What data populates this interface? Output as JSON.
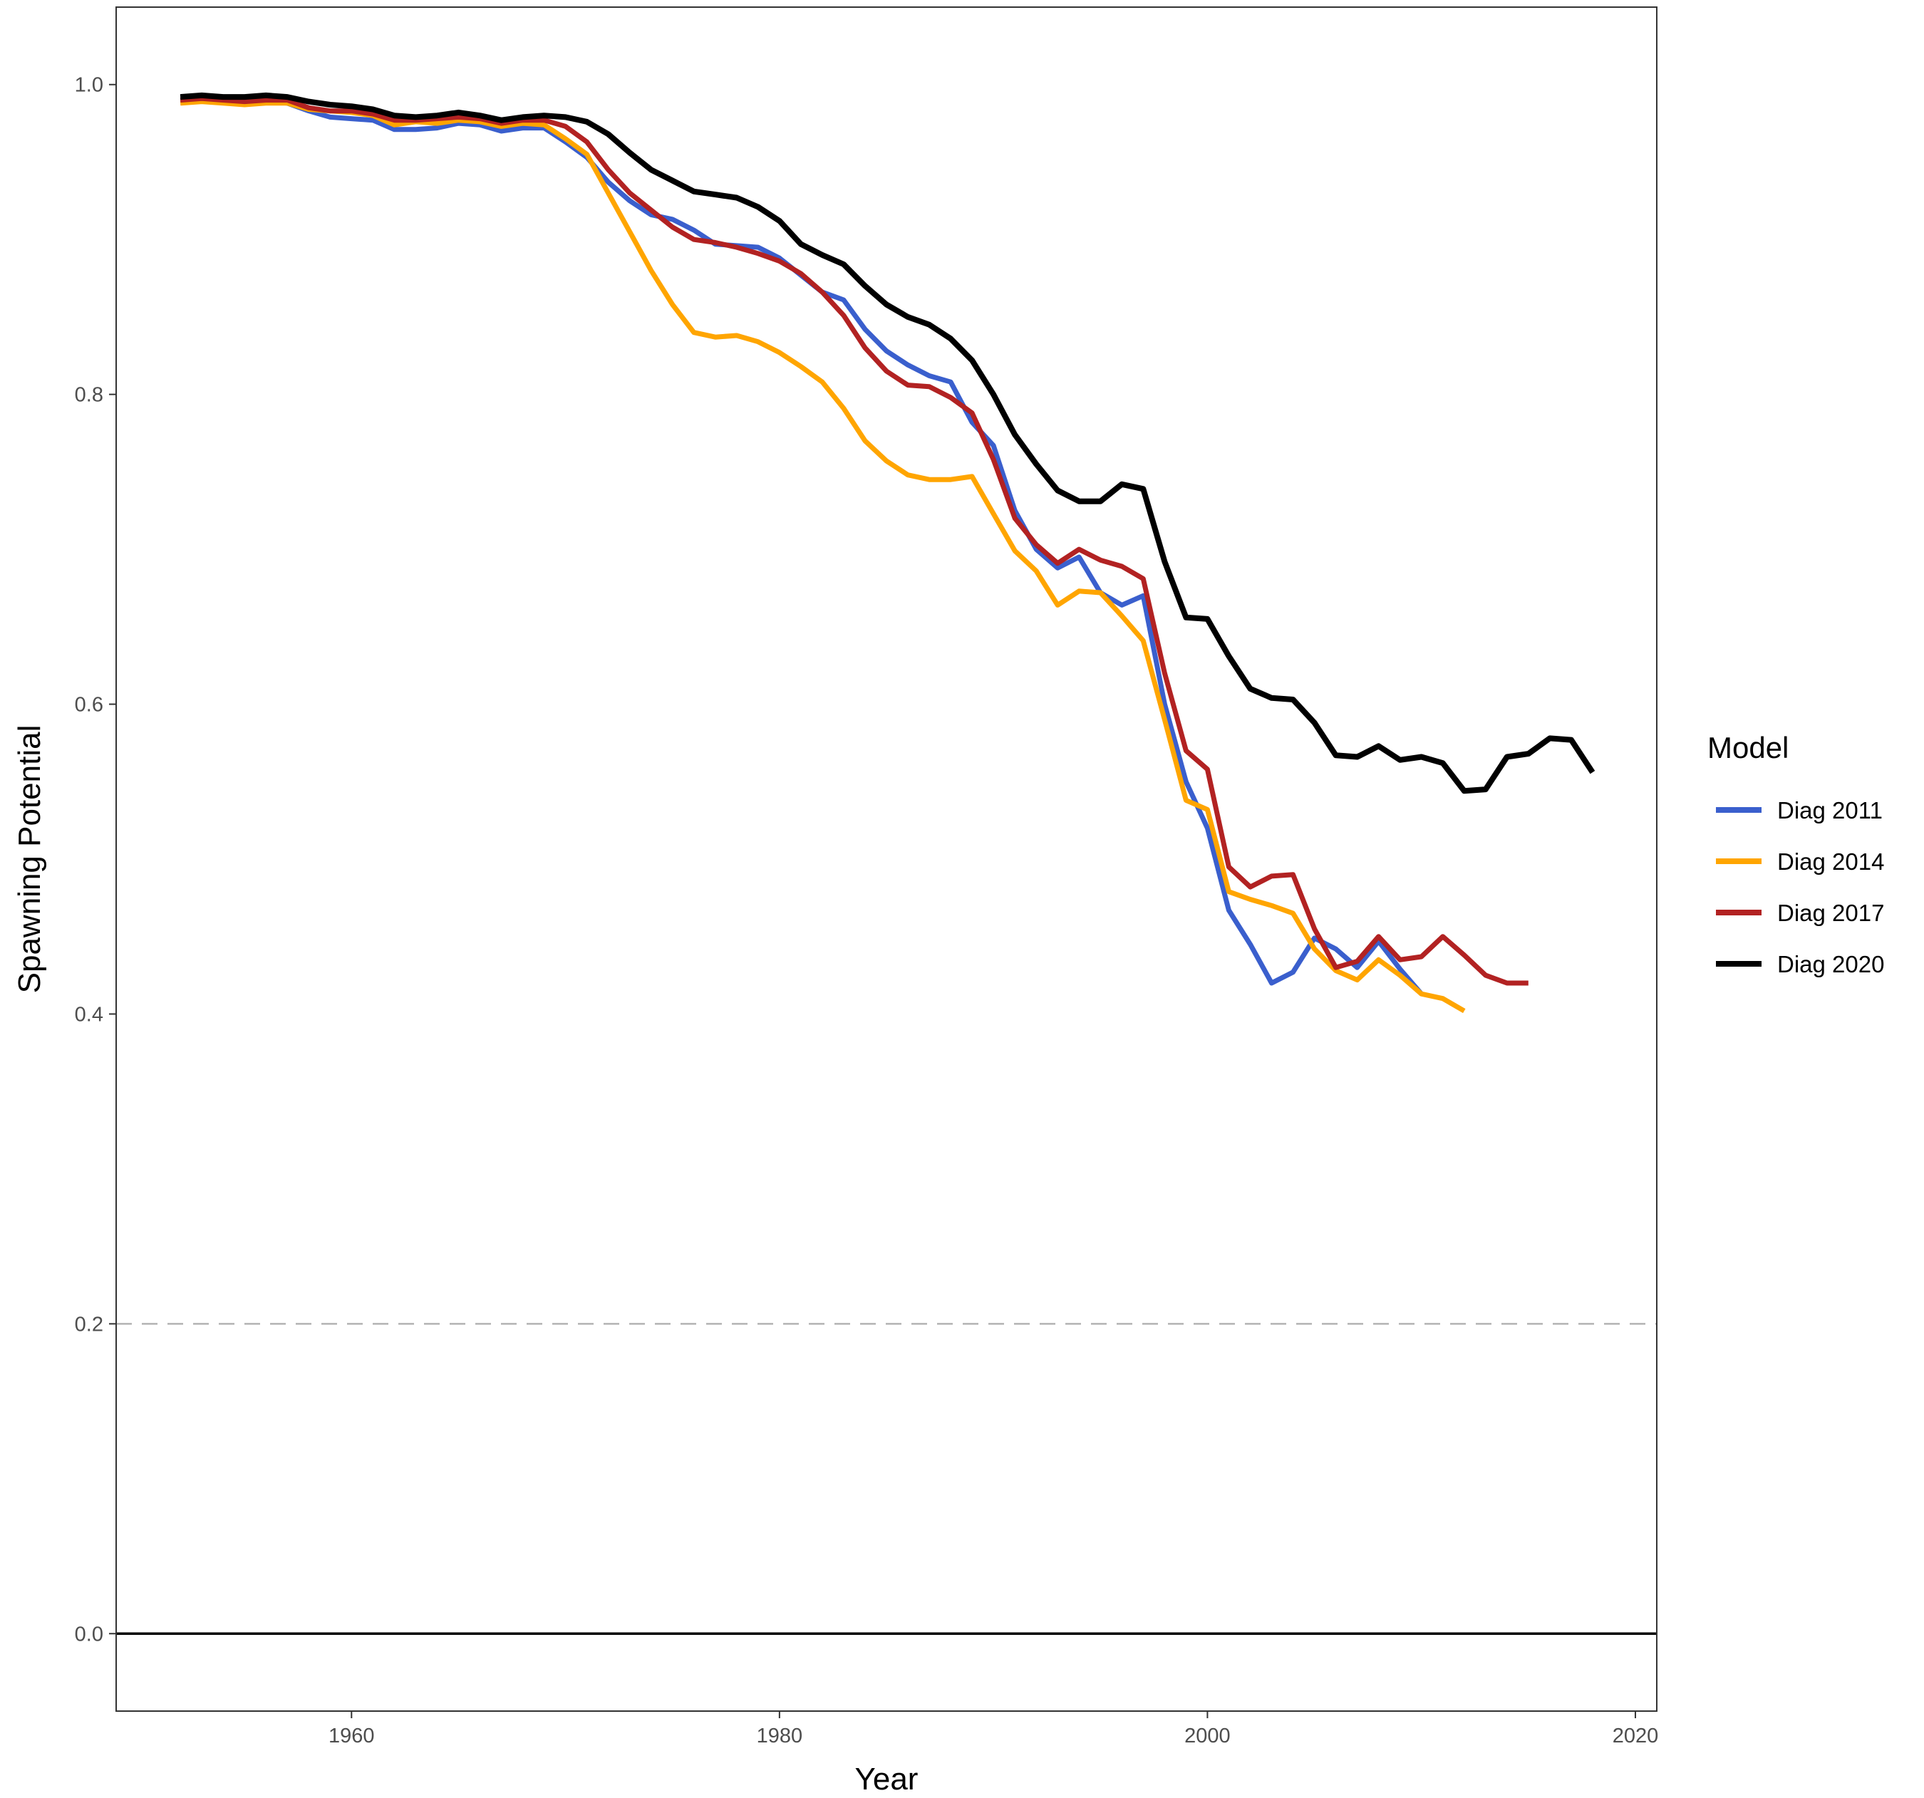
{
  "chart_data": {
    "type": "line",
    "xlabel": "Year",
    "ylabel": "Spawning Potential",
    "xlim": [
      1949,
      2021
    ],
    "ylim": [
      -0.05,
      1.05
    ],
    "x_ticks": [
      1960,
      1980,
      2000,
      2020
    ],
    "y_ticks": [
      0.0,
      0.2,
      0.4,
      0.6,
      0.8,
      1.0
    ],
    "x_tick_labels": [
      "1960",
      "1980",
      "2000",
      "2020"
    ],
    "y_tick_labels": [
      "0.0",
      "0.2",
      "0.4",
      "0.6",
      "0.8",
      "1.0"
    ],
    "grid": false,
    "reference_lines": [
      {
        "y": 0.2,
        "style": "dashed",
        "color": "#b3b3b3"
      },
      {
        "y": 0.0,
        "style": "solid",
        "color": "#000000"
      }
    ],
    "legend": {
      "title": "Model",
      "position": "right"
    },
    "series": [
      {
        "name": "Diag 2011",
        "color": "#3a5fcd",
        "x": [
          1952,
          1953,
          1954,
          1955,
          1956,
          1957,
          1958,
          1959,
          1960,
          1961,
          1962,
          1963,
          1964,
          1965,
          1966,
          1967,
          1968,
          1969,
          1970,
          1971,
          1972,
          1973,
          1974,
          1975,
          1976,
          1977,
          1978,
          1979,
          1980,
          1981,
          1982,
          1983,
          1984,
          1985,
          1986,
          1987,
          1988,
          1989,
          1990,
          1991,
          1992,
          1993,
          1994,
          1995,
          1996,
          1997,
          1998,
          1999,
          2000,
          2001,
          2002,
          2003,
          2004,
          2005,
          2006,
          2007,
          2008,
          2009,
          2010
        ],
        "y": [
          0.99,
          0.991,
          0.99,
          0.989,
          0.989,
          0.988,
          0.983,
          0.979,
          0.978,
          0.977,
          0.971,
          0.971,
          0.972,
          0.975,
          0.974,
          0.97,
          0.972,
          0.972,
          0.963,
          0.953,
          0.937,
          0.925,
          0.916,
          0.913,
          0.906,
          0.897,
          0.896,
          0.895,
          0.888,
          0.877,
          0.866,
          0.861,
          0.842,
          0.828,
          0.819,
          0.812,
          0.808,
          0.782,
          0.767,
          0.725,
          0.7,
          0.688,
          0.695,
          0.672,
          0.664,
          0.67,
          0.6,
          0.55,
          0.52,
          0.467,
          0.445,
          0.42,
          0.427,
          0.449,
          0.442,
          0.43,
          0.447,
          0.429,
          0.413
        ]
      },
      {
        "name": "Diag 2014",
        "color": "#ffa500",
        "x": [
          1952,
          1953,
          1954,
          1955,
          1956,
          1957,
          1958,
          1959,
          1960,
          1961,
          1962,
          1963,
          1964,
          1965,
          1966,
          1967,
          1968,
          1969,
          1970,
          1971,
          1972,
          1973,
          1974,
          1975,
          1976,
          1977,
          1978,
          1979,
          1980,
          1981,
          1982,
          1983,
          1984,
          1985,
          1986,
          1987,
          1988,
          1989,
          1990,
          1991,
          1992,
          1993,
          1994,
          1995,
          1996,
          1997,
          1998,
          1999,
          2000,
          2001,
          2002,
          2003,
          2004,
          2005,
          2006,
          2007,
          2008,
          2009,
          2010,
          2011,
          2012
        ],
        "y": [
          0.988,
          0.989,
          0.988,
          0.987,
          0.988,
          0.988,
          0.984,
          0.983,
          0.982,
          0.98,
          0.974,
          0.976,
          0.975,
          0.977,
          0.976,
          0.973,
          0.975,
          0.974,
          0.965,
          0.955,
          0.93,
          0.905,
          0.88,
          0.858,
          0.84,
          0.837,
          0.838,
          0.834,
          0.827,
          0.818,
          0.808,
          0.791,
          0.77,
          0.757,
          0.748,
          0.745,
          0.745,
          0.747,
          0.723,
          0.699,
          0.686,
          0.664,
          0.673,
          0.672,
          0.657,
          0.641,
          0.59,
          0.538,
          0.532,
          0.479,
          0.474,
          0.47,
          0.465,
          0.442,
          0.428,
          0.422,
          0.435,
          0.425,
          0.413,
          0.41,
          0.402
        ]
      },
      {
        "name": "Diag 2017",
        "color": "#b22222",
        "x": [
          1952,
          1953,
          1954,
          1955,
          1956,
          1957,
          1958,
          1959,
          1960,
          1961,
          1962,
          1963,
          1964,
          1965,
          1966,
          1967,
          1968,
          1969,
          1970,
          1971,
          1972,
          1973,
          1974,
          1975,
          1976,
          1977,
          1978,
          1979,
          1980,
          1981,
          1982,
          1983,
          1984,
          1985,
          1986,
          1987,
          1988,
          1989,
          1990,
          1991,
          1992,
          1993,
          1994,
          1995,
          1996,
          1997,
          1998,
          1999,
          2000,
          2001,
          2002,
          2003,
          2004,
          2005,
          2006,
          2007,
          2008,
          2009,
          2010,
          2011,
          2012,
          2013,
          2014,
          2015
        ],
        "y": [
          0.99,
          0.991,
          0.99,
          0.989,
          0.99,
          0.99,
          0.985,
          0.983,
          0.983,
          0.981,
          0.977,
          0.977,
          0.978,
          0.979,
          0.978,
          0.975,
          0.977,
          0.977,
          0.973,
          0.963,
          0.945,
          0.93,
          0.919,
          0.908,
          0.9,
          0.898,
          0.895,
          0.891,
          0.886,
          0.878,
          0.866,
          0.851,
          0.83,
          0.815,
          0.806,
          0.805,
          0.798,
          0.788,
          0.758,
          0.72,
          0.703,
          0.691,
          0.7,
          0.693,
          0.689,
          0.681,
          0.62,
          0.57,
          0.558,
          0.495,
          0.482,
          0.489,
          0.49,
          0.455,
          0.43,
          0.434,
          0.45,
          0.435,
          0.437,
          0.45,
          0.438,
          0.425,
          0.42,
          0.42
        ]
      },
      {
        "name": "Diag 2020",
        "color": "#000000",
        "x": [
          1952,
          1953,
          1954,
          1955,
          1956,
          1957,
          1958,
          1959,
          1960,
          1961,
          1962,
          1963,
          1964,
          1965,
          1966,
          1967,
          1968,
          1969,
          1970,
          1971,
          1972,
          1973,
          1974,
          1975,
          1976,
          1977,
          1978,
          1979,
          1980,
          1981,
          1982,
          1983,
          1984,
          1985,
          1986,
          1987,
          1988,
          1989,
          1990,
          1991,
          1992,
          1993,
          1994,
          1995,
          1996,
          1997,
          1998,
          1999,
          2000,
          2001,
          2002,
          2003,
          2004,
          2005,
          2006,
          2007,
          2008,
          2009,
          2010,
          2011,
          2012,
          2013,
          2014,
          2015,
          2016,
          2017,
          2018
        ],
        "y": [
          0.992,
          0.993,
          0.992,
          0.992,
          0.993,
          0.992,
          0.989,
          0.987,
          0.986,
          0.984,
          0.98,
          0.979,
          0.98,
          0.982,
          0.98,
          0.977,
          0.979,
          0.98,
          0.979,
          0.976,
          0.968,
          0.956,
          0.945,
          0.938,
          0.931,
          0.929,
          0.927,
          0.921,
          0.912,
          0.897,
          0.89,
          0.884,
          0.87,
          0.858,
          0.85,
          0.845,
          0.836,
          0.822,
          0.8,
          0.774,
          0.755,
          0.738,
          0.731,
          0.731,
          0.742,
          0.739,
          0.692,
          0.656,
          0.655,
          0.631,
          0.61,
          0.604,
          0.603,
          0.588,
          0.567,
          0.566,
          0.573,
          0.564,
          0.566,
          0.562,
          0.544,
          0.545,
          0.566,
          0.568,
          0.578,
          0.577,
          0.556
        ]
      }
    ]
  }
}
